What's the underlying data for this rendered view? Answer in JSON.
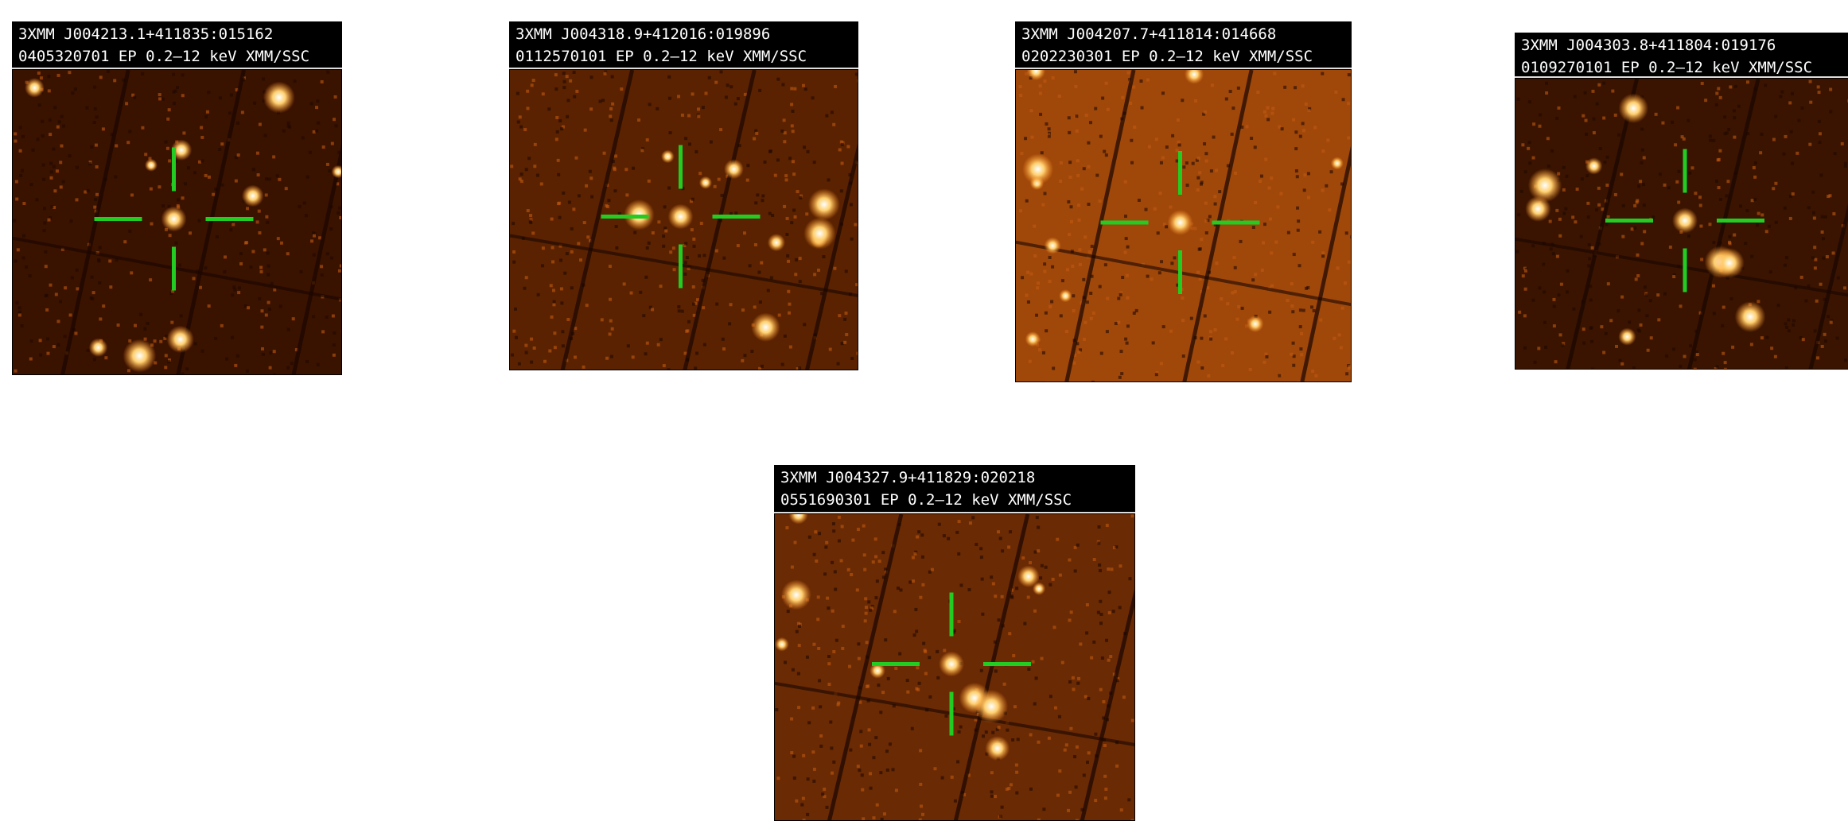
{
  "panels": [
    {
      "source": "3XMM J004213.1+411835:015162",
      "observation": "0405320701 EP 0.2–12 keV XMM/SSC"
    },
    {
      "source": "3XMM J004318.9+412016:019896",
      "observation": "0112570101 EP 0.2–12 keV XMM/SSC"
    },
    {
      "source": "3XMM J004207.7+411814:014668",
      "observation": "0202230301 EP 0.2–12 keV XMM/SSC"
    },
    {
      "source": "3XMM J004303.8+411804:019176",
      "observation": "0109270101 EP 0.2–12 keV XMM/SSC"
    },
    {
      "source": "3XMM J004327.9+411829:020218",
      "observation": "0551690301 EP 0.2–12 keV XMM/SSC"
    }
  ]
}
